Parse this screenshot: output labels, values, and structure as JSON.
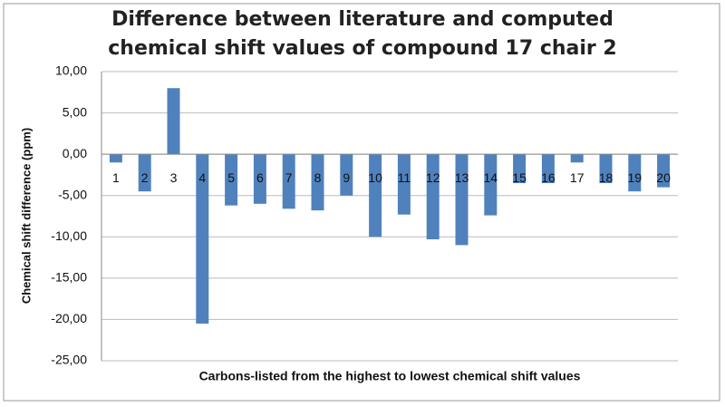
{
  "chart_data": {
    "type": "bar",
    "title": "Difference between literature and computed chemical shift values of compound 17 chair 2",
    "x_label": "Carbons-listed from the highest to lowest chemical shift values",
    "y_label": "Chemical shift difference (ppm)",
    "categories": [
      "1",
      "2",
      "3",
      "4",
      "5",
      "6",
      "7",
      "8",
      "9",
      "10",
      "11",
      "12",
      "13",
      "14",
      "15",
      "16",
      "17",
      "18",
      "19",
      "20"
    ],
    "values": [
      -1,
      -4.5,
      8,
      -20.5,
      -6.2,
      -6,
      -6.6,
      -6.8,
      -5,
      -10,
      -7.3,
      -10.3,
      -11,
      -7.4,
      -3.5,
      -3.5,
      -1,
      -3.5,
      -4.5,
      -4
    ],
    "color": "#4f81bd",
    "ylim": [
      -25,
      10
    ],
    "yticks": [
      {
        "value": -25,
        "label": "-25,00"
      },
      {
        "value": -20,
        "label": "-20,00"
      },
      {
        "value": -15,
        "label": "-15,00"
      },
      {
        "value": -10,
        "label": "-10,00"
      },
      {
        "value": -5,
        "label": "-5,00"
      },
      {
        "value": 0,
        "label": "0,00"
      },
      {
        "value": 5,
        "label": "5,00"
      },
      {
        "value": 10,
        "label": "10,00"
      }
    ],
    "grid": true
  }
}
